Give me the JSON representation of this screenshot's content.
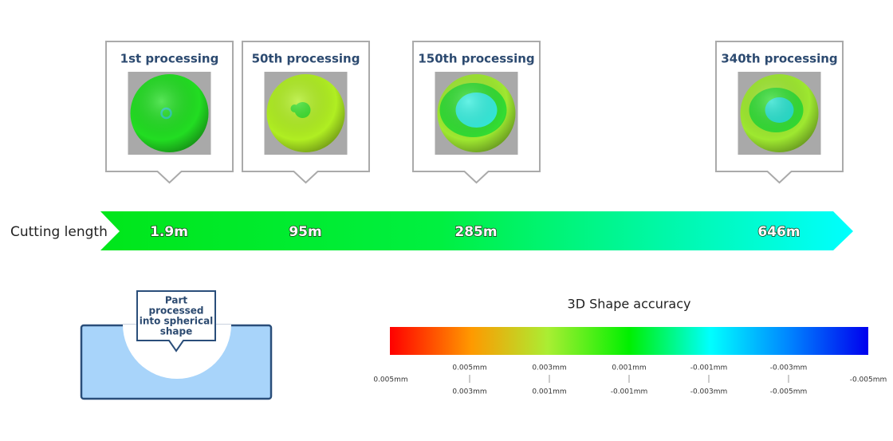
{
  "cutting_length_label": "Cutting length",
  "stages": [
    {
      "title": "1st processing",
      "length": "1.9m"
    },
    {
      "title": "50th processing",
      "length": "95m"
    },
    {
      "title": "150th processing",
      "length": "285m"
    },
    {
      "title": "340th processing",
      "length": "646m"
    }
  ],
  "part_label": [
    "Part",
    "processed",
    "into spherical",
    "shape"
  ],
  "scale": {
    "title": "3D Shape accuracy",
    "labels_top": [
      "0.005mm",
      "0.003mm",
      "0.001mm",
      "-0.001mm",
      "-0.003mm"
    ],
    "labels_ends": [
      "0.005mm",
      "-0.005mm"
    ],
    "labels_bottom": [
      "0.003mm",
      "0.001mm",
      "-0.001mm",
      "-0.003mm",
      "-0.005mm"
    ]
  }
}
